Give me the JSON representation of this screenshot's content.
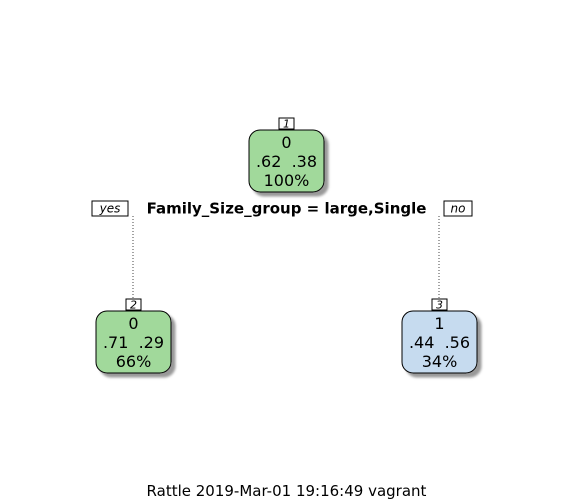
{
  "nodes": [
    {
      "id": "1",
      "class": "0",
      "probs": ".62  .38",
      "pct": "100%",
      "fill": "#a1d99b"
    },
    {
      "id": "2",
      "class": "0",
      "probs": ".71  .29",
      "pct": "66%",
      "fill": "#a1d99b"
    },
    {
      "id": "3",
      "class": "1",
      "probs": ".44  .56",
      "pct": "34%",
      "fill": "#c6dbef"
    }
  ],
  "split": {
    "label": "Family_Size_group = large,Single",
    "yes": "yes",
    "no": "no"
  },
  "caption": "Rattle 2019-Mar-01 19:16:49 vagrant"
}
